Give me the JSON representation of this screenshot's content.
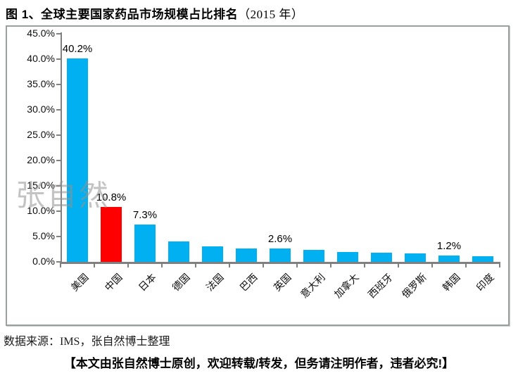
{
  "header": {
    "title_main": "图 1、全球主要国家药品市场规模占比排名",
    "title_year": "（2015 年）"
  },
  "watermark": "张自然",
  "source": "数据来源：IMS，张自然博士整理",
  "footer": "【本文由张自然博士原创，欢迎转载/转发，但务请注明作者，违者必究!】",
  "chart_data": {
    "type": "bar",
    "title": "全球主要国家药品市场规模占比排名（2015 年）",
    "categories": [
      "美国",
      "中国",
      "日本",
      "德国",
      "法国",
      "巴西",
      "英国",
      "意大利",
      "加拿大",
      "西班牙",
      "俄罗斯",
      "韩国",
      "印度"
    ],
    "values": [
      40.2,
      10.8,
      7.3,
      4.0,
      3.0,
      2.7,
      2.6,
      2.4,
      1.9,
      1.8,
      1.7,
      1.2,
      1.1
    ],
    "data_labels": [
      "40.2%",
      "10.8%",
      "7.3%",
      "",
      "",
      "",
      "2.6%",
      "",
      "",
      "",
      "",
      "1.2%",
      ""
    ],
    "bar_colors": [
      "#00b0f0",
      "#ff0000",
      "#00b0f0",
      "#00b0f0",
      "#00b0f0",
      "#00b0f0",
      "#00b0f0",
      "#00b0f0",
      "#00b0f0",
      "#00b0f0",
      "#00b0f0",
      "#00b0f0",
      "#00b0f0"
    ],
    "default_bar_color": "#00b0f0",
    "highlight_color": "#ff0000",
    "axis_color": "#808080",
    "xlabel": "",
    "ylabel": "",
    "ylim": [
      0,
      45
    ],
    "yticks": [
      "45.0%",
      "40.0%",
      "35.0%",
      "30.0%",
      "25.0%",
      "20.0%",
      "15.0%",
      "10.0%",
      "5.0%",
      "0.0%"
    ],
    "grid": false,
    "legend": false
  }
}
